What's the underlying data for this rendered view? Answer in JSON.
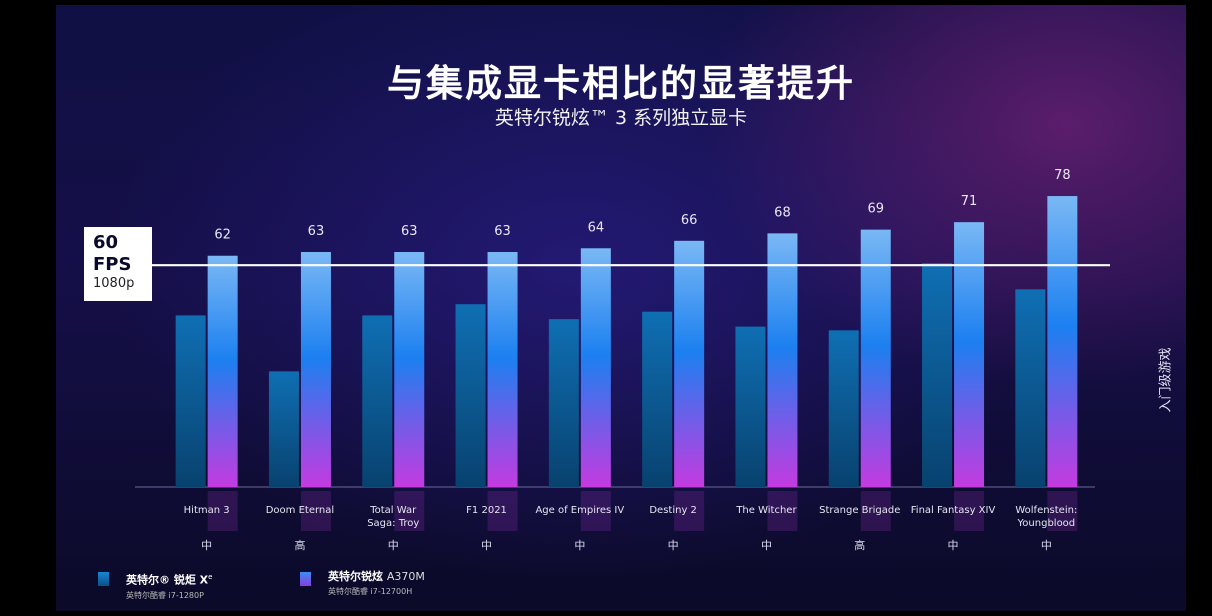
{
  "title": "与集成显卡相比的显著提升",
  "subtitle": "英特尔锐炫™ 3 系列独立显卡",
  "side_label": "入门级游戏",
  "reference": {
    "value": "60",
    "unit": "FPS",
    "resolution": "1080p"
  },
  "legend": [
    {
      "name": "英特尔® 锐炬 X",
      "superscript": "e",
      "sub": "英特尔酷睿 i7-1280P",
      "color": "#0e6aa8"
    },
    {
      "name": "英特尔锐炫",
      "model": "A370M",
      "sub": "英特尔酷睿 i7-12700H",
      "color": "#7a3fe0"
    }
  ],
  "colors": {
    "xe_bar": "#0c5e9c",
    "arc_top": "#7ab8f5",
    "arc_mid": "#1c80f0",
    "arc_bottom": "#c43be0"
  },
  "chart_data": {
    "type": "bar",
    "categories": [
      "Hitman 3",
      "Doom Eternal",
      "Total War\nSaga: Troy",
      "F1 2021",
      "Age of Empires IV",
      "Destiny 2",
      "The Witcher",
      "Strange Brigade",
      "Final Fantasy XIV",
      "Wolfenstein:\nYoungblood"
    ],
    "settings": [
      "中",
      "高",
      "中",
      "中",
      "中",
      "中",
      "中",
      "高",
      "中",
      "中"
    ],
    "series": [
      {
        "name": "英特尔® 锐炬 Xe",
        "values": [
          46,
          31,
          46,
          49,
          45,
          47,
          43,
          42,
          60,
          53
        ]
      },
      {
        "name": "英特尔锐炫 A370M",
        "values": [
          62,
          63,
          63,
          63,
          64,
          66,
          68,
          69,
          71,
          78
        ]
      }
    ],
    "data_labels": [
      "62",
      "63",
      "63",
      "63",
      "64",
      "66",
      "68",
      "69",
      "71",
      "78"
    ],
    "reference_line": 60,
    "ylim": [
      0,
      100
    ],
    "grid": false
  }
}
